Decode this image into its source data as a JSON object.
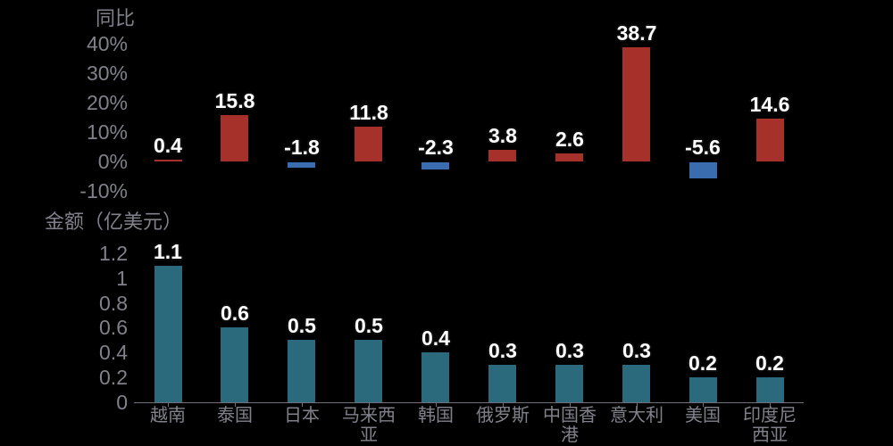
{
  "page": {
    "background": "#000000"
  },
  "style": {
    "axis_text_color": "#81818b",
    "axis_line_color": "#70707a",
    "value_label_color": "#ffffff",
    "positive_bar_color": "#a5312a",
    "negative_bar_color": "#3a6cb0",
    "amount_bar_color": "#2b6a7d"
  },
  "chart_data": [
    {
      "type": "bar",
      "title": "同比",
      "ylabel": "同比",
      "categories": [
        "越南",
        "泰国",
        "日本",
        "马来西亚",
        "韩国",
        "俄罗斯",
        "中国香港",
        "意大利",
        "美国",
        "印度尼西亚"
      ],
      "values": [
        0.4,
        15.8,
        -1.8,
        11.8,
        -2.3,
        3.8,
        2.6,
        38.7,
        -5.6,
        14.6
      ],
      "value_unit": "%",
      "ylim": [
        -10,
        40
      ],
      "ytick_values": [
        40,
        30,
        20,
        10,
        0,
        -10
      ],
      "ytick_labels": [
        "40%",
        "30%",
        "20%",
        "10%",
        "0%",
        "-10%"
      ],
      "grid": "off",
      "legend": "none",
      "x_axis_labels_shown": false
    },
    {
      "type": "bar",
      "title": "金额（亿美元）",
      "ylabel": "金额（亿美元）",
      "categories": [
        "越南",
        "泰国",
        "日本",
        "马来西亚",
        "韩国",
        "俄罗斯",
        "中国香港",
        "意大利",
        "美国",
        "印度尼西亚"
      ],
      "values": [
        1.1,
        0.6,
        0.5,
        0.5,
        0.4,
        0.3,
        0.3,
        0.3,
        0.2,
        0.2
      ],
      "ylim": [
        0,
        1.2
      ],
      "ytick_values": [
        1.2,
        1,
        0.8,
        0.6,
        0.4,
        0.2,
        0
      ],
      "ytick_labels": [
        "1.2",
        "1",
        "0.8",
        "0.6",
        "0.4",
        "0.2",
        "0"
      ],
      "grid": "off",
      "legend": "none",
      "x_axis_labels_shown": true
    }
  ]
}
